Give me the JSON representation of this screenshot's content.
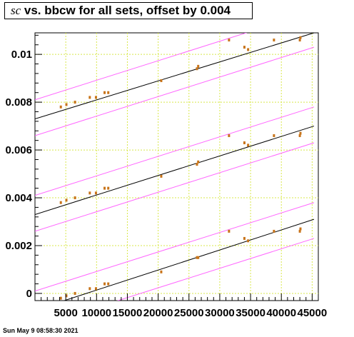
{
  "title": {
    "symbol": "sc",
    "text": " vs. bbcw for all sets, offset by 0.004"
  },
  "footer": "Sun May  9 08:58:30 2021",
  "colors": {
    "points": "#c8741a",
    "fit": "#000000",
    "band": "#ff66ff",
    "grid": "#d8e84a"
  },
  "chart_data": {
    "type": "scatter",
    "title": "sc vs. bbcw for all sets, offset by 0.004",
    "xlabel": "",
    "ylabel": "",
    "xlim": [
      0,
      46000
    ],
    "ylim": [
      -0.0003,
      0.0109
    ],
    "grid": true,
    "x_ticks": [
      5000,
      10000,
      15000,
      20000,
      25000,
      30000,
      35000,
      40000,
      45000
    ],
    "x_tick_labels": [
      "5000",
      "10000",
      "15000",
      "20000",
      "25000",
      "30000",
      "35000",
      "40000",
      "45000"
    ],
    "y_ticks": [
      0,
      0.002,
      0.004,
      0.006,
      0.008,
      0.01
    ],
    "y_tick_labels": [
      "0",
      "0.002",
      "0.004",
      "0.006",
      "0.008",
      "0.01"
    ],
    "series": [
      {
        "x": [
          4200,
          5100,
          6500,
          8900,
          9900,
          11300,
          11900,
          20500,
          26300,
          26500,
          31500,
          34000,
          34600,
          38800,
          43000,
          43100
        ],
        "y": [
          -0.0002,
          -0.0001,
          0.0,
          0.0002,
          0.0002,
          0.0004,
          0.0004,
          0.0009,
          0.0015,
          0.0015,
          0.0026,
          0.0023,
          0.0022,
          0.0026,
          0.0026,
          0.0027
        ],
        "fit": {
          "x": [
            0,
            45300
          ],
          "y": [
            -0.0007,
            0.0031
          ]
        },
        "band_upper": {
          "x": [
            0,
            45300
          ],
          "y": [
            0.0001,
            0.0038
          ]
        },
        "band_lower": {
          "x": [
            0,
            45300
          ],
          "y": [
            -0.0014,
            0.0023
          ]
        }
      },
      {
        "x": [
          4200,
          5100,
          6500,
          8900,
          9900,
          11300,
          11900,
          20500,
          26300,
          26500,
          31500,
          34000,
          34600,
          38800,
          43000,
          43100
        ],
        "y": [
          0.0038,
          0.0039,
          0.004,
          0.0042,
          0.0042,
          0.0044,
          0.0044,
          0.0049,
          0.0054,
          0.0055,
          0.0066,
          0.0063,
          0.0062,
          0.0066,
          0.0066,
          0.0067
        ],
        "fit": {
          "x": [
            0,
            45300
          ],
          "y": [
            0.0033,
            0.007
          ]
        },
        "band_upper": {
          "x": [
            0,
            45300
          ],
          "y": [
            0.0041,
            0.0078
          ]
        },
        "band_lower": {
          "x": [
            0,
            45300
          ],
          "y": [
            0.0026,
            0.0063
          ]
        }
      },
      {
        "x": [
          4200,
          5100,
          6500,
          8900,
          9900,
          11300,
          11900,
          20500,
          26300,
          26500,
          31500,
          34000,
          34600,
          38800,
          43000,
          43100
        ],
        "y": [
          0.0078,
          0.0079,
          0.008,
          0.0082,
          0.0082,
          0.0084,
          0.0084,
          0.0089,
          0.0094,
          0.0095,
          0.0106,
          0.0103,
          0.0102,
          0.0106,
          0.0106,
          0.0107
        ],
        "fit": {
          "x": [
            0,
            45300
          ],
          "y": [
            0.0073,
            0.0109
          ]
        },
        "band_upper": {
          "x": [
            0,
            45300
          ],
          "y": [
            0.0081,
            0.0118
          ]
        },
        "band_lower": {
          "x": [
            0,
            45300
          ],
          "y": [
            0.0066,
            0.0103
          ]
        }
      }
    ]
  }
}
